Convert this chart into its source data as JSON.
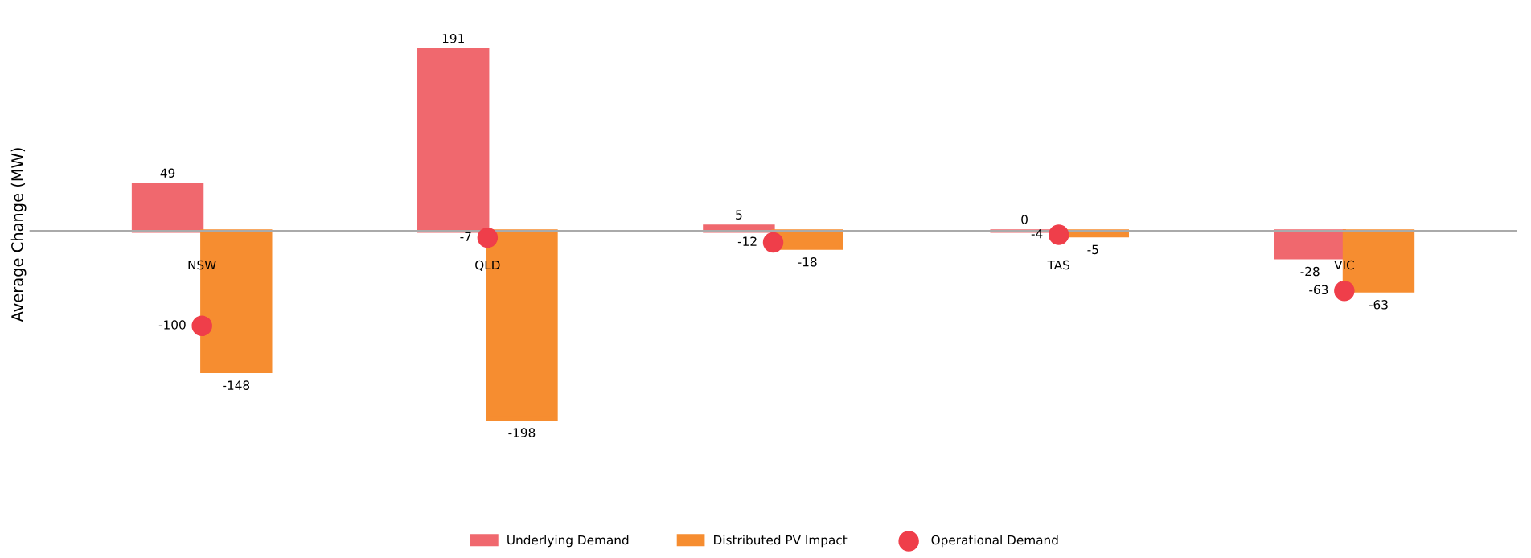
{
  "chart_data": {
    "type": "bar",
    "ylabel": "Average Change (MW)",
    "categories": [
      "NSW",
      "QLD",
      null,
      "TAS",
      "VIC"
    ],
    "series": [
      {
        "name": "Underlying Demand",
        "color": "#f0686e",
        "values": [
          49,
          191,
          5,
          0,
          -28
        ]
      },
      {
        "name": "Distributed PV Impact",
        "color": "#f68d30",
        "values": [
          -148,
          -198,
          -18,
          -5,
          -63
        ]
      },
      {
        "name": "Operational Demand",
        "type": "scatter",
        "color": "#ef3e4a",
        "values": [
          -100,
          -7,
          -12,
          -4,
          -63
        ]
      }
    ],
    "data_labels": true,
    "legend": "bottom",
    "grid": false,
    "tick_labels": "x",
    "marker": "circle"
  }
}
